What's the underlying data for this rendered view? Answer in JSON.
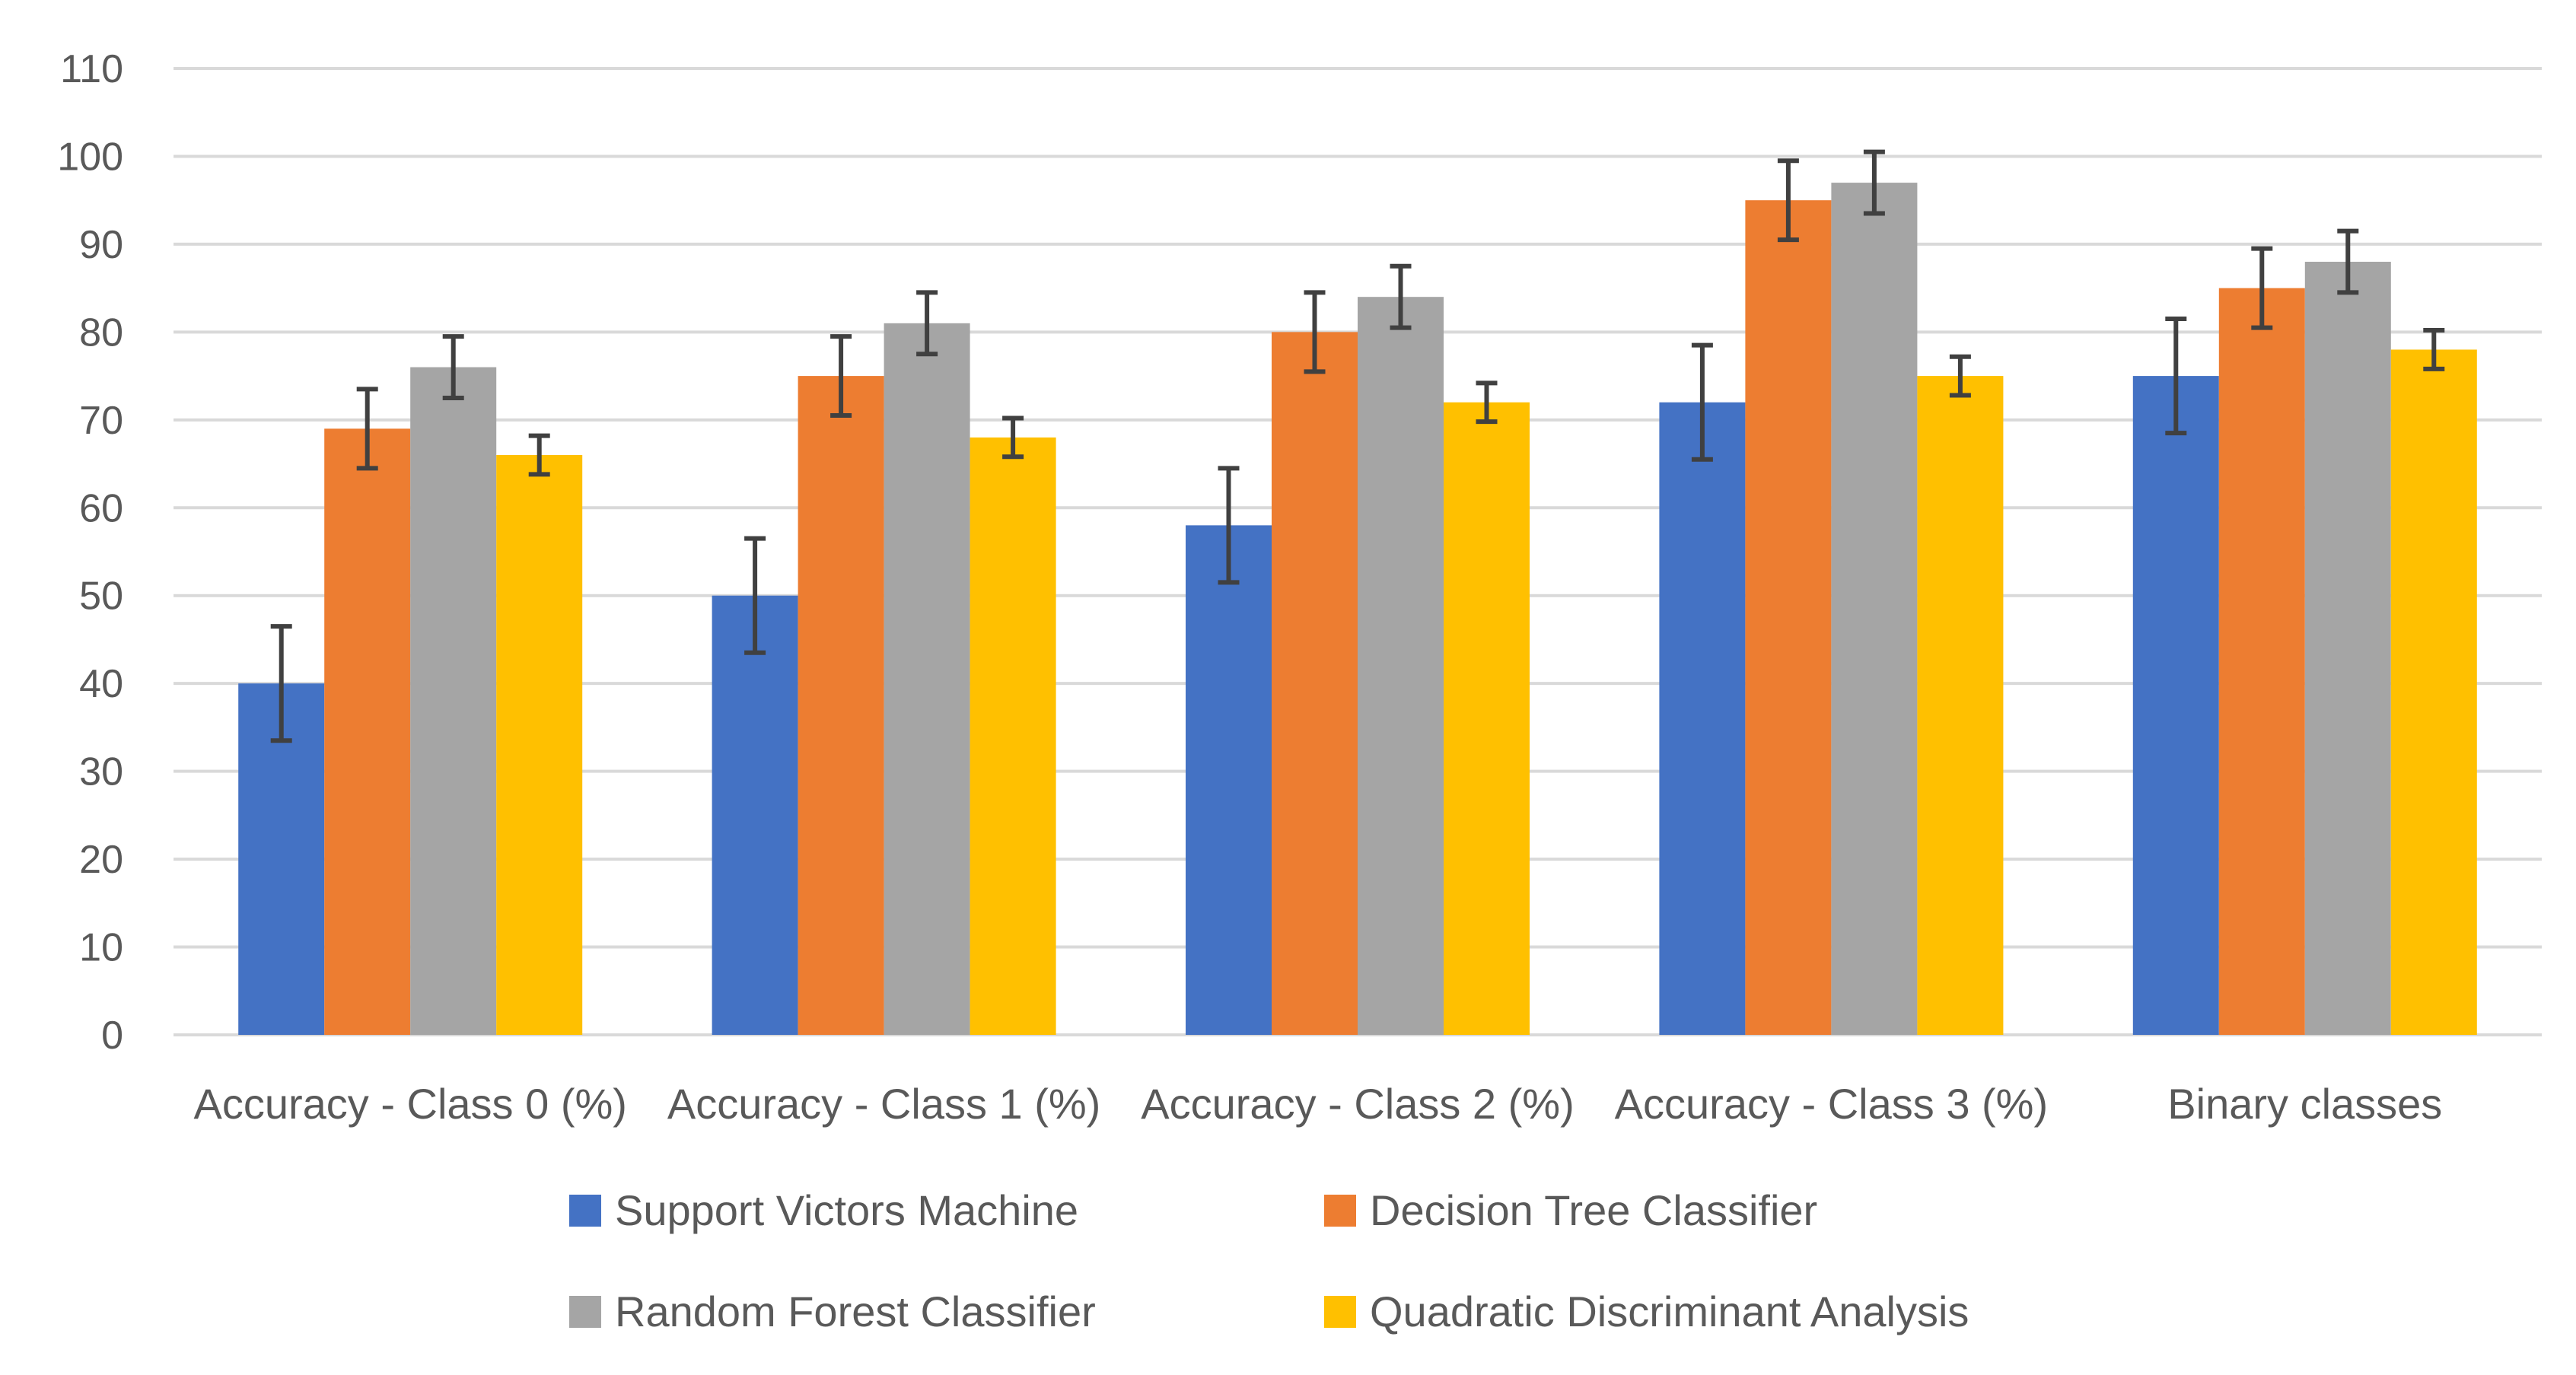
{
  "chart_data": {
    "type": "bar",
    "title": "",
    "xlabel": "",
    "ylabel": "",
    "ylim": [
      0,
      110
    ],
    "yticks": [
      0,
      10,
      20,
      30,
      40,
      50,
      60,
      70,
      80,
      90,
      100,
      110
    ],
    "grid": true,
    "legend_position": "bottom",
    "categories": [
      "Accuracy - Class 0 (%)",
      "Accuracy - Class 1 (%)",
      "Accuracy - Class 2 (%)",
      "Accuracy - Class 3 (%)",
      "Binary classes"
    ],
    "series": [
      {
        "name": "Support Victors Machine",
        "color": "#4472c4",
        "values": [
          40,
          50,
          58,
          72,
          75
        ],
        "errors": [
          6.5,
          6.5,
          6.5,
          6.5,
          6.5
        ]
      },
      {
        "name": "Decision Tree Classifier",
        "color": "#ed7d31",
        "values": [
          69,
          75,
          80,
          95,
          85
        ],
        "errors": [
          4.5,
          4.5,
          4.5,
          4.5,
          4.5
        ]
      },
      {
        "name": "Random Forest Classifier",
        "color": "#a5a5a5",
        "values": [
          76,
          81,
          84,
          97,
          88
        ],
        "errors": [
          3.5,
          3.5,
          3.5,
          3.5,
          3.5
        ]
      },
      {
        "name": "Quadratic Discriminant Analysis",
        "color": "#ffc000",
        "values": [
          66,
          68,
          72,
          75,
          78
        ],
        "errors": [
          2.2,
          2.2,
          2.2,
          2.2,
          2.2
        ]
      }
    ]
  }
}
